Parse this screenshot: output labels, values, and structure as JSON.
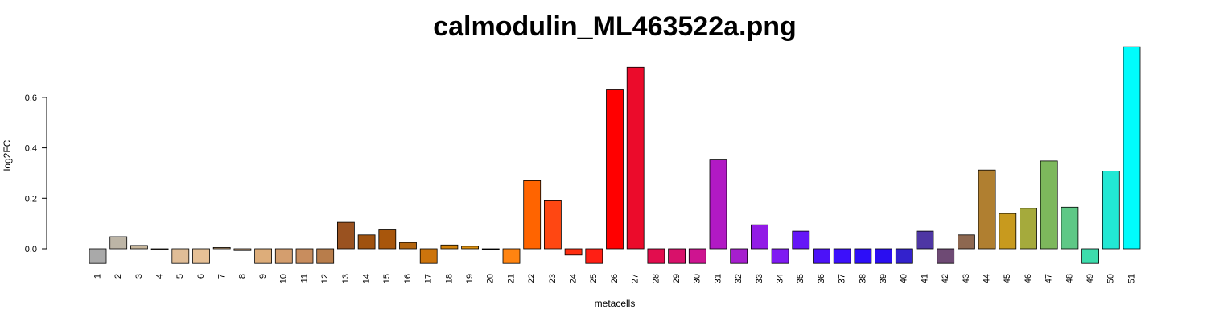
{
  "chart_data": {
    "type": "bar",
    "title": "calmodulin_ML463522a.png",
    "xlabel": "metacells",
    "ylabel": "log2FC",
    "ylim": [
      -0.06,
      0.8
    ],
    "yticks": [
      0.0,
      0.2,
      0.4,
      0.6
    ],
    "ytick_labels": [
      "0.0",
      "0.2",
      "0.4",
      "0.6"
    ],
    "grid": false,
    "categories": [
      "1",
      "2",
      "3",
      "4",
      "5",
      "6",
      "7",
      "8",
      "9",
      "10",
      "11",
      "12",
      "13",
      "14",
      "15",
      "16",
      "17",
      "18",
      "19",
      "20",
      "21",
      "22",
      "23",
      "24",
      "25",
      "26",
      "27",
      "28",
      "29",
      "30",
      "31",
      "32",
      "33",
      "34",
      "35",
      "36",
      "37",
      "38",
      "39",
      "40",
      "41",
      "42",
      "43",
      "44",
      "45",
      "46",
      "47",
      "48",
      "49",
      "50",
      "51"
    ],
    "values": [
      -0.058,
      0.048,
      0.013,
      -0.003,
      -0.058,
      -0.058,
      0.005,
      -0.007,
      -0.058,
      -0.058,
      -0.058,
      -0.058,
      0.105,
      0.055,
      0.075,
      0.025,
      -0.058,
      0.015,
      0.01,
      0.0,
      -0.058,
      0.27,
      0.19,
      -0.025,
      -0.058,
      0.63,
      0.72,
      -0.058,
      -0.058,
      -0.058,
      0.352,
      -0.058,
      0.095,
      -0.058,
      0.07,
      -0.058,
      -0.058,
      -0.058,
      -0.058,
      -0.058,
      0.07,
      -0.058,
      0.055,
      0.312,
      0.14,
      0.16,
      0.348,
      0.165,
      -0.058,
      0.308,
      0.8
    ],
    "colors": [
      "#A9A9A9",
      "#BDB5A6",
      "#C8B79C",
      "#D3B99B",
      "#E0BD97",
      "#E6C096",
      "#C9A57C",
      "#BB9A77",
      "#DDAD7A",
      "#D49E6E",
      "#C88D5E",
      "#B87D4B",
      "#9A5220",
      "#A0520F",
      "#A8560C",
      "#B2640F",
      "#CC740C",
      "#D2820A",
      "#DD900E",
      "#E6960A",
      "#FF8411",
      "#FF6400",
      "#FF4712",
      "#FF2E10",
      "#FF1F14",
      "#FF0000",
      "#EB0B2B",
      "#E20D4E",
      "#D8116A",
      "#CE1490",
      "#B119C4",
      "#A61ECE",
      "#921BE6",
      "#7F1AF2",
      "#6516F7",
      "#4C12F8",
      "#3C10FA",
      "#2D0EF8",
      "#2A0EF0",
      "#3322CC",
      "#4E36A4",
      "#6E4A74",
      "#8E6850",
      "#B07F30",
      "#C89A1E",
      "#A5AA3C",
      "#7DB85C",
      "#5EC886",
      "#3DDCAC",
      "#22E8D4",
      "#00FCFC"
    ]
  }
}
